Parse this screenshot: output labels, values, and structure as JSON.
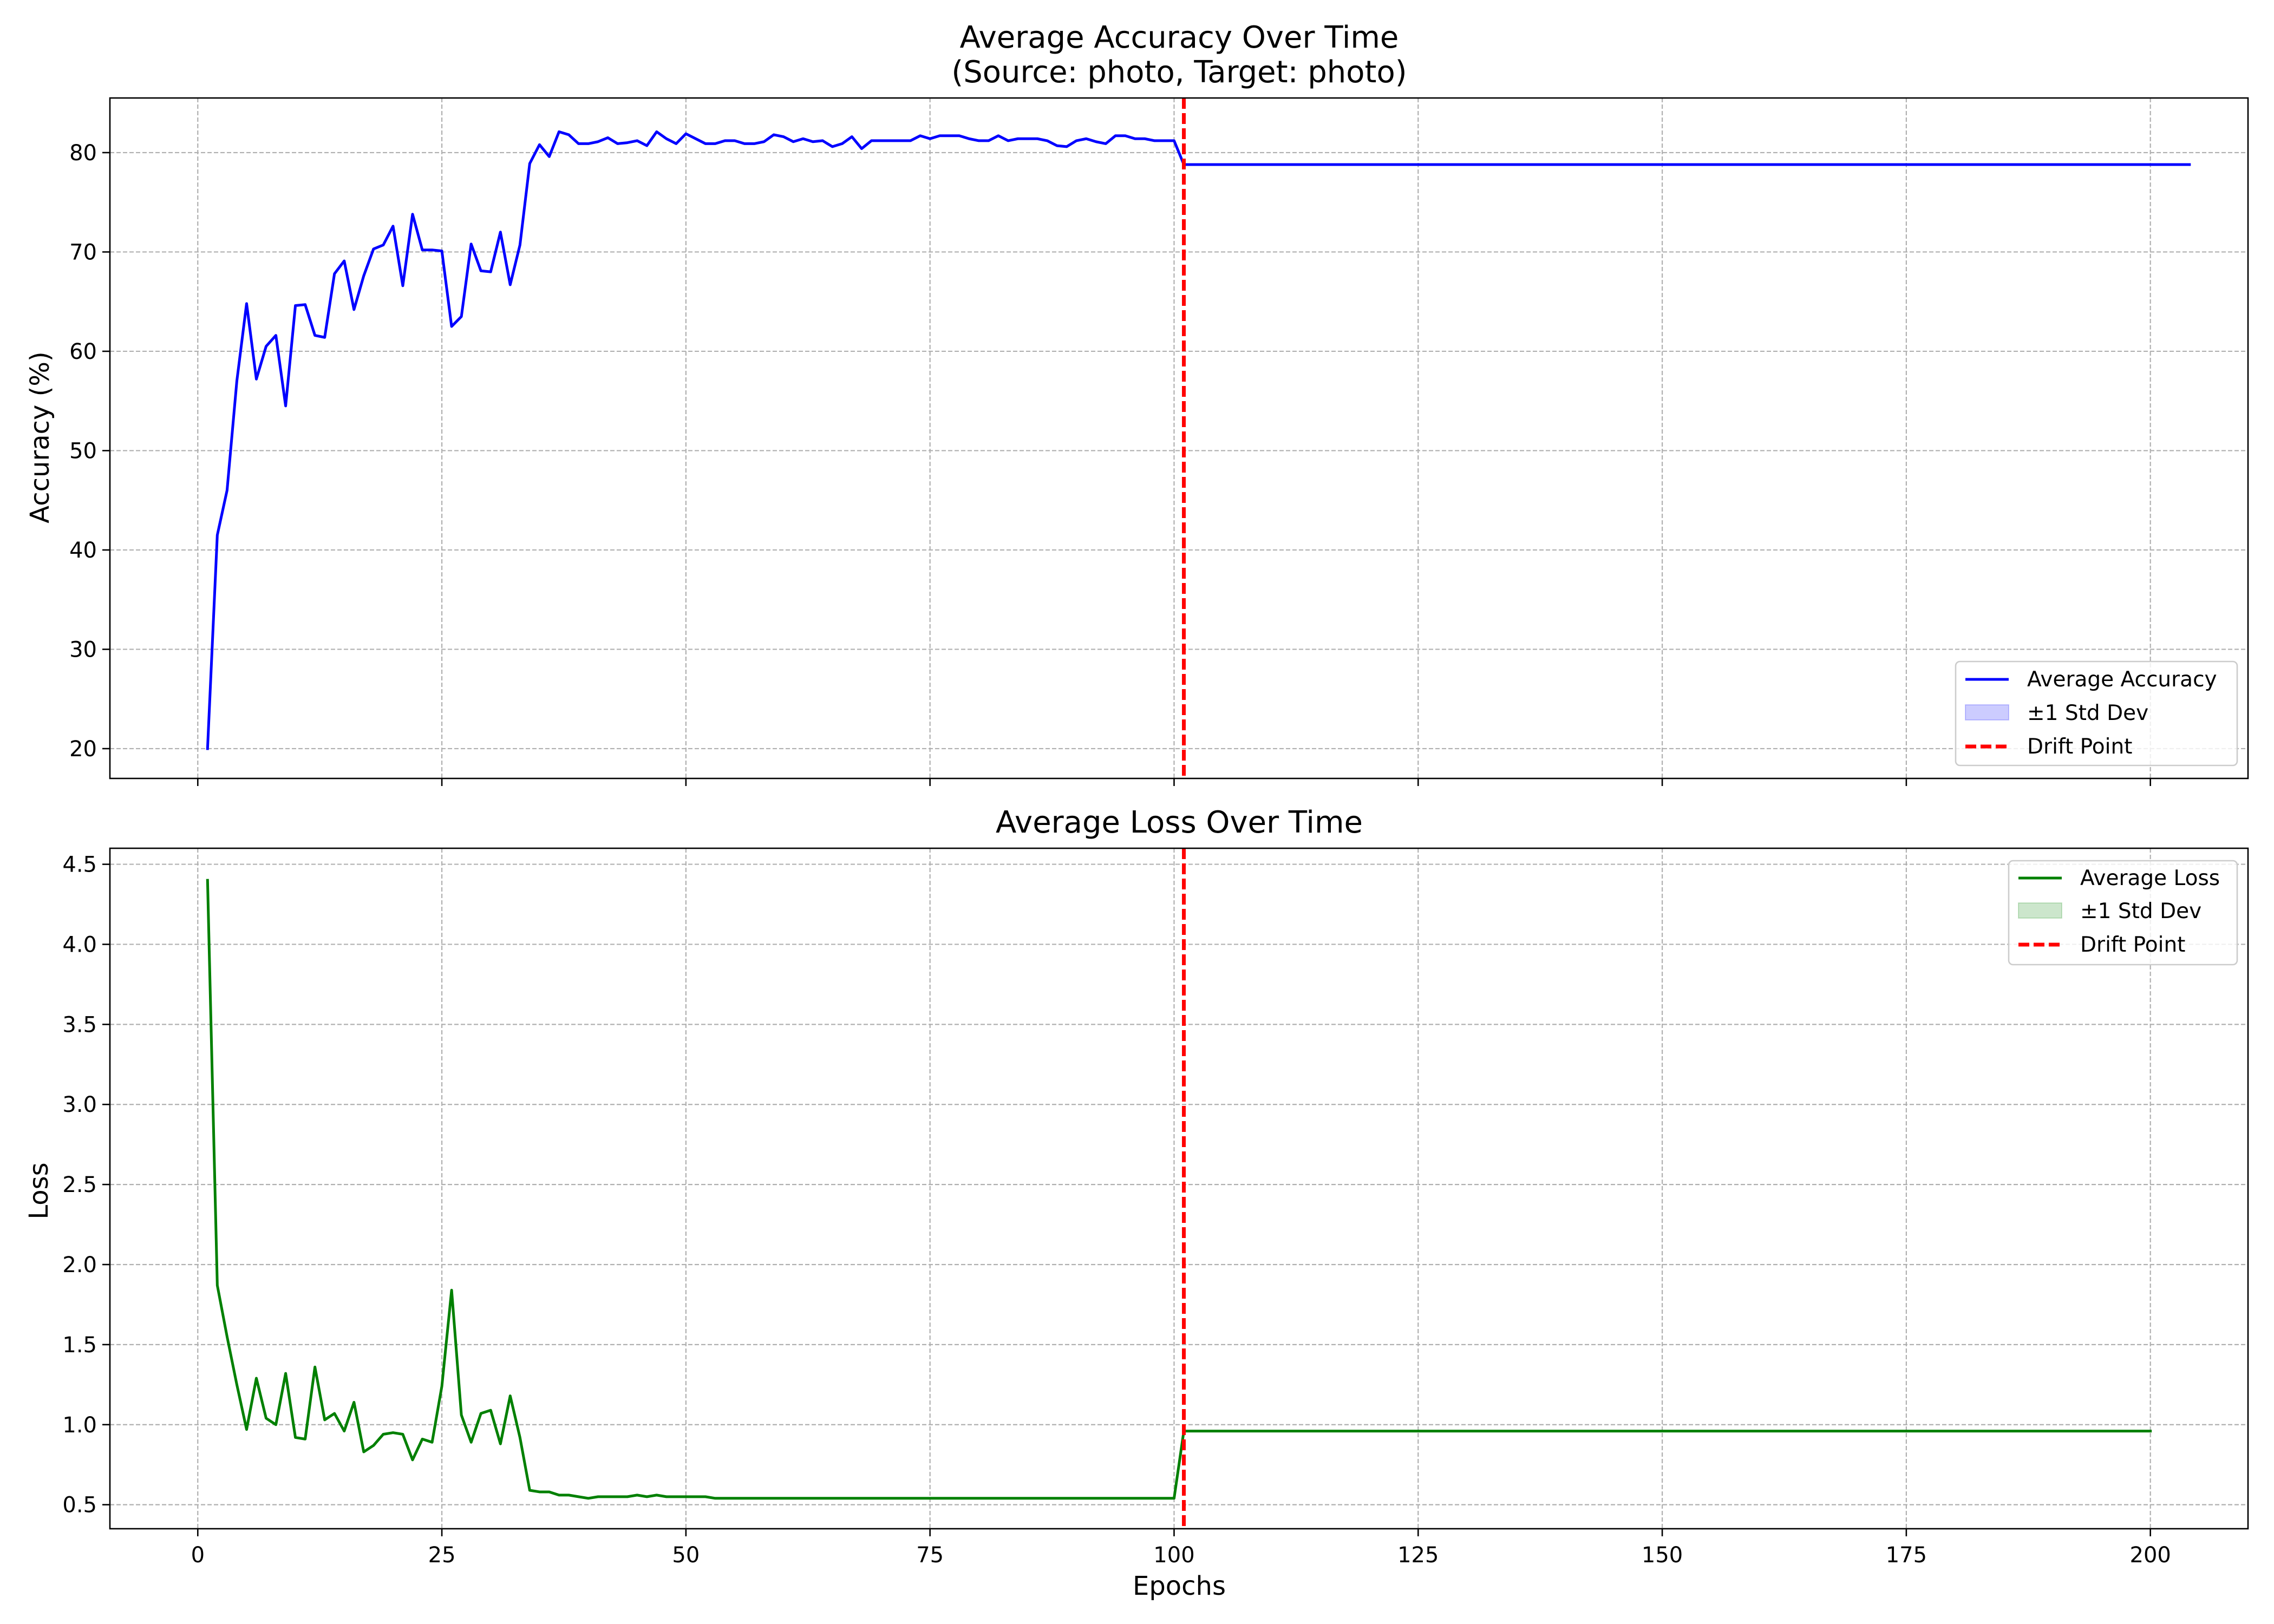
{
  "figure": {
    "xlabel": "Epochs",
    "x_ticks": [
      "0",
      "25",
      "50",
      "75",
      "100",
      "125",
      "150",
      "175",
      "200"
    ]
  },
  "chart_data": [
    {
      "type": "line",
      "title": "Average Accuracy Over Time",
      "subtitle": "(Source: photo, Target: photo)",
      "xlabel": "",
      "ylabel": "Accuracy (%)",
      "xlim": [
        -9,
        210
      ],
      "ylim": [
        17,
        85.5
      ],
      "x_ticks": [
        0,
        25,
        50,
        75,
        100,
        125,
        150,
        175,
        200
      ],
      "y_ticks": [
        20,
        30,
        40,
        50,
        60,
        70,
        80
      ],
      "y_tick_labels": [
        "20",
        "30",
        "40",
        "50",
        "60",
        "70",
        "80"
      ],
      "grid": true,
      "legend_position": "lower right",
      "legend": [
        {
          "label": "Average Accuracy",
          "kind": "line"
        },
        {
          "label": "±1 Std Dev",
          "kind": "patch"
        },
        {
          "label": "Drift Point",
          "kind": "dashed"
        }
      ],
      "series": [
        {
          "name": "Average Accuracy",
          "color": "#0000ff",
          "x_start": 1,
          "values": [
            20.0,
            41.5,
            46.0,
            57.0,
            64.8,
            57.2,
            60.5,
            61.6,
            54.5,
            64.6,
            64.7,
            61.6,
            61.4,
            67.8,
            69.1,
            64.2,
            67.6,
            70.3,
            70.7,
            72.6,
            66.6,
            73.8,
            70.2,
            70.2,
            70.1,
            62.5,
            63.5,
            70.8,
            68.1,
            68.0,
            72.0,
            66.7,
            70.7,
            78.9,
            80.8,
            79.6,
            82.1,
            81.8,
            80.9,
            80.9,
            81.1,
            81.5,
            80.9,
            81.0,
            81.2,
            80.7,
            82.1,
            81.4,
            80.9,
            81.9,
            81.4,
            80.9,
            80.9,
            81.2,
            81.2,
            80.9,
            80.9,
            81.1,
            81.8,
            81.6,
            81.1,
            81.4,
            81.1,
            81.2,
            80.6,
            80.9,
            81.6,
            80.4,
            81.2,
            81.2,
            81.2,
            81.2,
            81.2,
            81.7,
            81.4,
            81.7,
            81.7,
            81.7,
            81.4,
            81.2,
            81.2,
            81.7,
            81.2,
            81.4,
            81.4,
            81.4,
            81.2,
            80.7,
            80.6,
            81.2,
            81.4,
            81.1,
            80.9,
            81.7,
            81.7,
            81.4,
            81.4,
            81.2,
            81.2,
            81.2,
            78.8,
            78.8,
            78.8,
            78.8,
            78.8,
            78.8,
            78.8,
            78.8,
            78.8,
            78.8,
            78.8,
            78.8,
            78.8,
            78.8,
            78.8,
            78.8,
            78.8,
            78.8,
            78.8,
            78.8,
            78.8,
            78.8,
            78.8,
            78.8,
            78.8,
            78.8,
            78.8,
            78.8,
            78.8,
            78.8,
            78.8,
            78.8,
            78.8,
            78.8,
            78.8,
            78.8,
            78.8,
            78.8,
            78.8,
            78.8,
            78.8,
            78.8,
            78.8,
            78.8,
            78.8,
            78.8,
            78.8,
            78.8,
            78.8,
            78.8,
            78.8,
            78.8,
            78.8,
            78.8,
            78.8,
            78.8,
            78.8,
            78.8,
            78.8,
            78.8,
            78.8,
            78.8,
            78.8,
            78.8,
            78.8,
            78.8,
            78.8,
            78.8,
            78.8,
            78.8,
            78.8,
            78.8,
            78.8,
            78.8,
            78.8,
            78.8,
            78.8,
            78.8,
            78.8,
            78.8,
            78.8,
            78.8,
            78.8,
            78.8,
            78.8,
            78.8,
            78.8,
            78.8,
            78.8,
            78.8,
            78.8,
            78.8,
            78.8,
            78.8,
            78.8,
            78.8,
            78.8,
            78.8,
            78.8,
            78.8,
            78.8,
            78.8,
            78.8,
            78.8
          ]
        }
      ],
      "std_band": {
        "name": "±1 Std Dev",
        "color": "#0000ff",
        "alpha": 0.2,
        "visible_width": 0
      },
      "drift_point": {
        "name": "Drift Point",
        "x": 101,
        "color": "#ff0000",
        "style": "dashed"
      }
    },
    {
      "type": "line",
      "title": "Average Loss Over Time",
      "subtitle": "",
      "xlabel": "Epochs",
      "ylabel": "Loss",
      "xlim": [
        -9,
        210
      ],
      "ylim": [
        0.35,
        4.6
      ],
      "x_ticks": [
        0,
        25,
        50,
        75,
        100,
        125,
        150,
        175,
        200
      ],
      "y_ticks": [
        0.5,
        1.0,
        1.5,
        2.0,
        2.5,
        3.0,
        3.5,
        4.0,
        4.5
      ],
      "y_tick_labels": [
        "0.5",
        "1.0",
        "1.5",
        "2.0",
        "2.5",
        "3.0",
        "3.5",
        "4.0",
        "4.5"
      ],
      "grid": true,
      "legend_position": "upper right",
      "legend": [
        {
          "label": "Average Loss",
          "kind": "line"
        },
        {
          "label": "±1 Std Dev",
          "kind": "patch"
        },
        {
          "label": "Drift Point",
          "kind": "dashed"
        }
      ],
      "series": [
        {
          "name": "Average Loss",
          "color": "#008000",
          "x_start": 1,
          "values": [
            4.4,
            1.87,
            1.55,
            1.25,
            0.97,
            1.29,
            1.04,
            1.0,
            1.32,
            0.92,
            0.91,
            1.36,
            1.03,
            1.07,
            0.96,
            1.14,
            0.83,
            0.87,
            0.94,
            0.95,
            0.94,
            0.78,
            0.91,
            0.89,
            1.24,
            1.84,
            1.06,
            0.89,
            1.07,
            1.09,
            0.88,
            1.18,
            0.92,
            0.59,
            0.58,
            0.58,
            0.56,
            0.56,
            0.55,
            0.54,
            0.55,
            0.55,
            0.55,
            0.55,
            0.56,
            0.55,
            0.56,
            0.55,
            0.55,
            0.55,
            0.55,
            0.55,
            0.54,
            0.54,
            0.54,
            0.54,
            0.54,
            0.54,
            0.54,
            0.54,
            0.54,
            0.54,
            0.54,
            0.54,
            0.54,
            0.54,
            0.54,
            0.54,
            0.54,
            0.54,
            0.54,
            0.54,
            0.54,
            0.54,
            0.54,
            0.54,
            0.54,
            0.54,
            0.54,
            0.54,
            0.54,
            0.54,
            0.54,
            0.54,
            0.54,
            0.54,
            0.54,
            0.54,
            0.54,
            0.54,
            0.54,
            0.54,
            0.54,
            0.54,
            0.54,
            0.54,
            0.54,
            0.54,
            0.54,
            0.54,
            0.96,
            0.96,
            0.96,
            0.96,
            0.96,
            0.96,
            0.96,
            0.96,
            0.96,
            0.96,
            0.96,
            0.96,
            0.96,
            0.96,
            0.96,
            0.96,
            0.96,
            0.96,
            0.96,
            0.96,
            0.96,
            0.96,
            0.96,
            0.96,
            0.96,
            0.96,
            0.96,
            0.96,
            0.96,
            0.96,
            0.96,
            0.96,
            0.96,
            0.96,
            0.96,
            0.96,
            0.96,
            0.96,
            0.96,
            0.96,
            0.96,
            0.96,
            0.96,
            0.96,
            0.96,
            0.96,
            0.96,
            0.96,
            0.96,
            0.96,
            0.96,
            0.96,
            0.96,
            0.96,
            0.96,
            0.96,
            0.96,
            0.96,
            0.96,
            0.96,
            0.96,
            0.96,
            0.96,
            0.96,
            0.96,
            0.96,
            0.96,
            0.96,
            0.96,
            0.96,
            0.96,
            0.96,
            0.96,
            0.96,
            0.96,
            0.96,
            0.96,
            0.96,
            0.96,
            0.96,
            0.96,
            0.96,
            0.96,
            0.96,
            0.96,
            0.96,
            0.96,
            0.96,
            0.96,
            0.96,
            0.96,
            0.96,
            0.96,
            0.96,
            0.96,
            0.96,
            0.96,
            0.96,
            0.96,
            0.96
          ]
        }
      ],
      "std_band": {
        "name": "±1 Std Dev",
        "color": "#008000",
        "alpha": 0.2,
        "visible_width": 0
      },
      "drift_point": {
        "name": "Drift Point",
        "x": 101,
        "color": "#ff0000",
        "style": "dashed"
      }
    }
  ]
}
